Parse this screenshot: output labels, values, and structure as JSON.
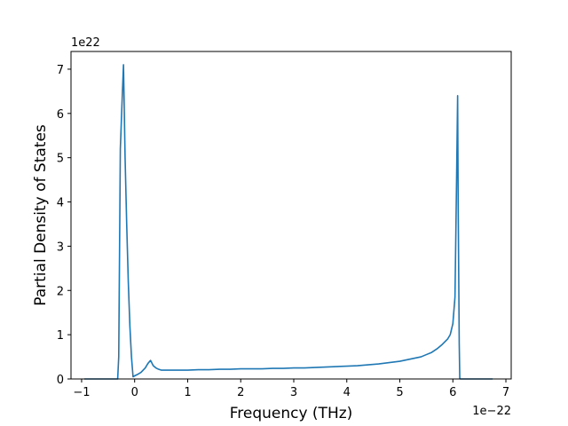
{
  "chart_data": {
    "type": "line",
    "title": "",
    "xlabel": "Frequency (THz)",
    "ylabel": "Partial Density of States",
    "x_offset_text": "1e−22",
    "y_offset_text": "1e22",
    "xlim": [
      -1.2,
      7.1
    ],
    "ylim": [
      0,
      7.4
    ],
    "x_ticks": [
      -1,
      0,
      1,
      2,
      3,
      4,
      5,
      6,
      7
    ],
    "x_tick_labels": [
      "−1",
      "0",
      "1",
      "2",
      "3",
      "4",
      "5",
      "6",
      "7"
    ],
    "y_ticks": [
      0,
      1,
      2,
      3,
      4,
      5,
      6,
      7
    ],
    "y_tick_labels": [
      "0",
      "1",
      "2",
      "3",
      "4",
      "5",
      "6",
      "7"
    ],
    "grid": false,
    "series": [
      {
        "color": "#1f77b4",
        "x": [
          -0.95,
          -0.5,
          -0.32,
          -0.3,
          -0.27,
          -0.23,
          -0.21,
          -0.18,
          -0.15,
          -0.12,
          -0.09,
          -0.06,
          -0.03,
          0.0,
          0.05,
          0.12,
          0.2,
          0.25,
          0.3,
          0.35,
          0.4,
          0.45,
          0.5,
          0.6,
          0.8,
          1.0,
          1.2,
          1.4,
          1.6,
          1.8,
          2.0,
          2.2,
          2.4,
          2.6,
          2.8,
          3.0,
          3.2,
          3.4,
          3.6,
          3.8,
          4.0,
          4.2,
          4.4,
          4.6,
          4.8,
          5.0,
          5.2,
          5.4,
          5.5,
          5.6,
          5.7,
          5.8,
          5.9,
          5.95,
          6.0,
          6.04,
          6.07,
          6.09,
          6.1,
          6.12,
          6.13,
          6.14,
          6.3,
          6.75
        ],
        "y": [
          0,
          0,
          0,
          0.5,
          5.2,
          6.5,
          7.1,
          5.0,
          3.5,
          2.2,
          1.2,
          0.5,
          0.05,
          0.07,
          0.1,
          0.15,
          0.25,
          0.35,
          0.42,
          0.3,
          0.25,
          0.22,
          0.2,
          0.2,
          0.2,
          0.2,
          0.21,
          0.21,
          0.22,
          0.22,
          0.23,
          0.23,
          0.23,
          0.24,
          0.24,
          0.25,
          0.25,
          0.26,
          0.27,
          0.28,
          0.29,
          0.3,
          0.32,
          0.34,
          0.37,
          0.4,
          0.45,
          0.5,
          0.55,
          0.6,
          0.68,
          0.78,
          0.9,
          1.0,
          1.25,
          1.85,
          4.5,
          6.4,
          4.0,
          0.8,
          0.02,
          0,
          0,
          0
        ]
      }
    ]
  }
}
